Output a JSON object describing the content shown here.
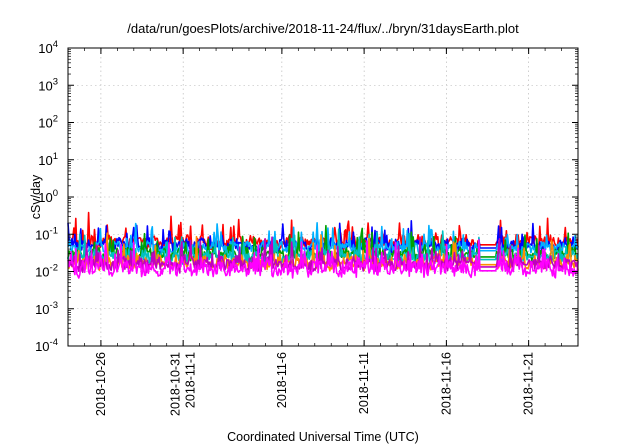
{
  "chart_data": {
    "type": "line",
    "title": "/data/run/goesPlots/archive/2018-11-24/flux/../bryn/31daysEarth.plot",
    "xlabel": "Coordinated Universal Time (UTC)",
    "ylabel": "cSv/day",
    "y_scale": "log",
    "ylim": [
      0.0001,
      10000
    ],
    "xlim": [
      "2018-10-24",
      "2018-11-24"
    ],
    "grid": true,
    "legend": "none",
    "y_ticks": [
      {
        "value": 0.0001,
        "base": "10",
        "exp": "-4"
      },
      {
        "value": 0.001,
        "base": "10",
        "exp": "-3"
      },
      {
        "value": 0.01,
        "base": "10",
        "exp": "-2"
      },
      {
        "value": 0.1,
        "base": "10",
        "exp": "-1"
      },
      {
        "value": 1,
        "base": "10",
        "exp": "0"
      },
      {
        "value": 10,
        "base": "10",
        "exp": "1"
      },
      {
        "value": 100,
        "base": "10",
        "exp": "2"
      },
      {
        "value": 1000,
        "base": "10",
        "exp": "3"
      },
      {
        "value": 10000,
        "base": "10",
        "exp": "4"
      }
    ],
    "x_ticks": [
      {
        "value": "2018-10-26",
        "lines": [
          "2018-10-26"
        ]
      },
      {
        "value": "2018-10-31",
        "lines": [
          "2018-10-31",
          "2018-11-1"
        ]
      },
      {
        "value": "2018-11-06",
        "lines": [
          "2018-11-6"
        ]
      },
      {
        "value": "2018-11-11",
        "lines": [
          "2018-11-11"
        ]
      },
      {
        "value": "2018-11-16",
        "lines": [
          "2018-11-16"
        ]
      },
      {
        "value": "2018-11-21",
        "lines": [
          "2018-11-21"
        ]
      }
    ],
    "gap": [
      "2018-11-18",
      "2018-11-19"
    ],
    "series": [
      {
        "color": "#ff0000",
        "base": 0.055,
        "spread": 0.3
      },
      {
        "color": "#0000ff",
        "base": 0.045,
        "spread": 0.3
      },
      {
        "color": "#00b0ff",
        "base": 0.038,
        "spread": 0.28
      },
      {
        "color": "#00a000",
        "base": 0.026,
        "spread": 0.3
      },
      {
        "color": "#00c0c0",
        "base": 0.022,
        "spread": 0.32
      },
      {
        "color": "#ff8c00",
        "base": 0.016,
        "spread": 0.33
      },
      {
        "color": "#c000c0",
        "base": 0.014,
        "spread": 0.35
      },
      {
        "color": "#ff00ff",
        "base": 0.011,
        "spread": 0.4
      }
    ]
  }
}
